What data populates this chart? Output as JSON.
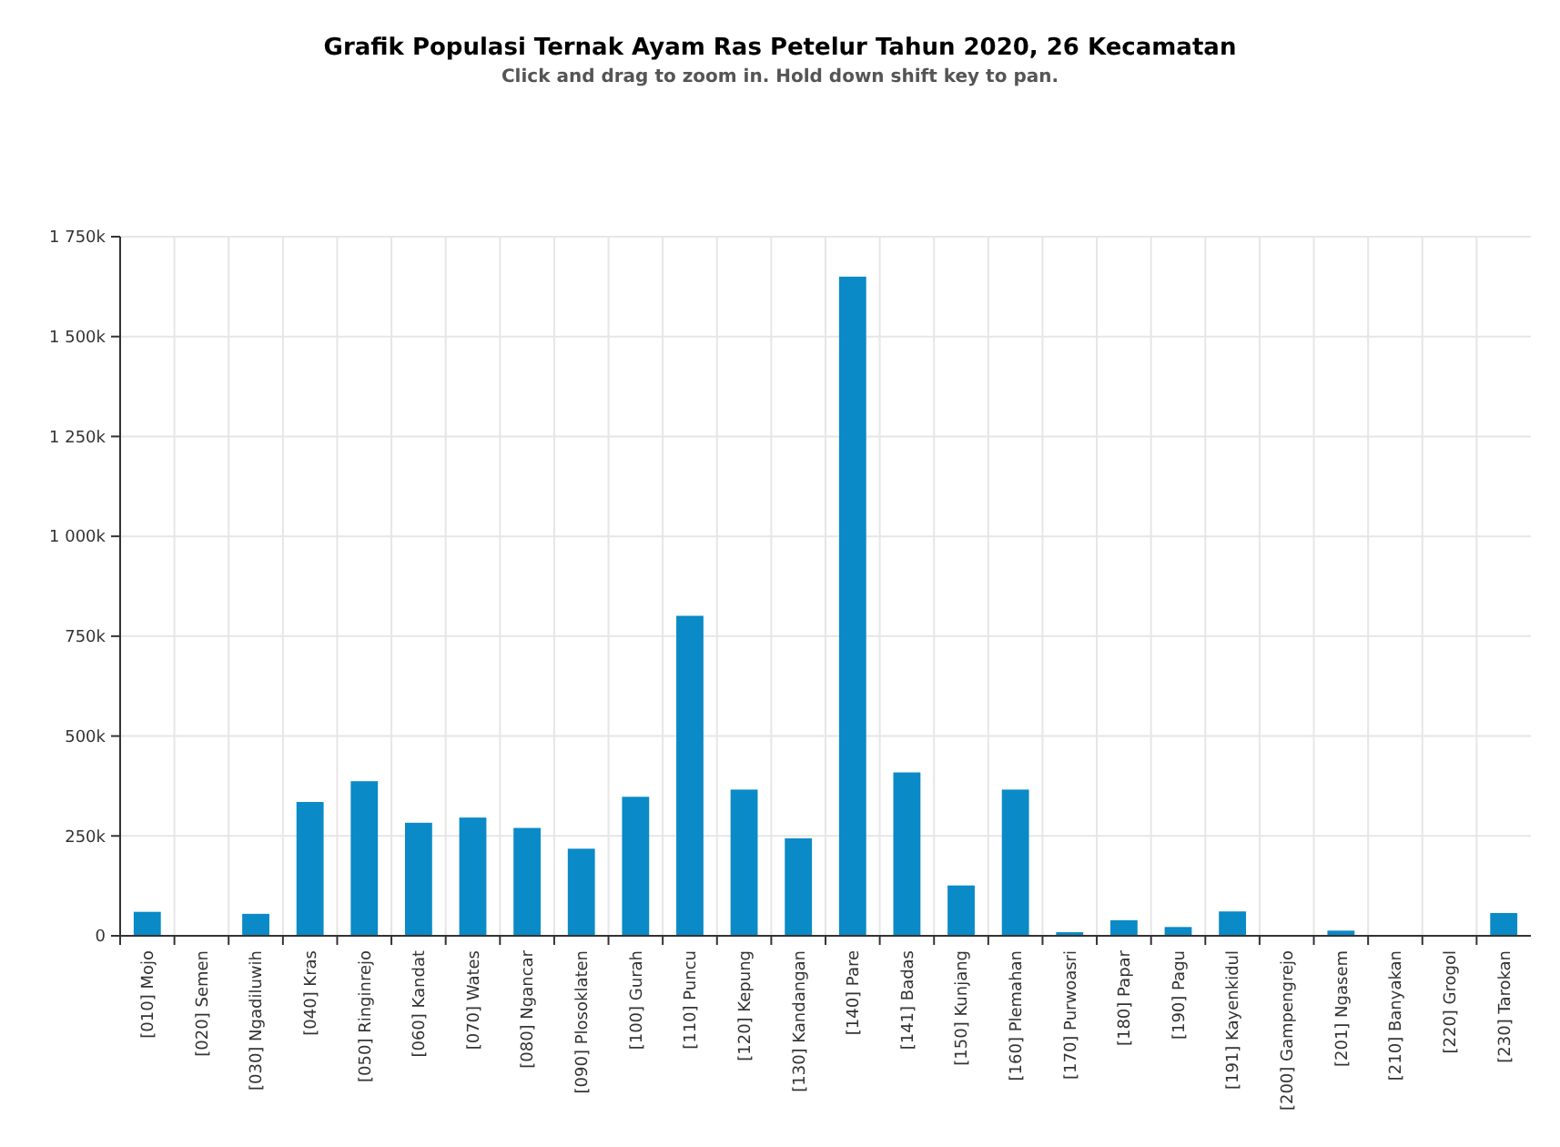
{
  "chart_data": {
    "type": "bar",
    "title": "Grafik Populasi Ternak Ayam Ras Petelur Tahun 2020, 26 Kecamatan",
    "subtitle": "Click and drag to zoom in. Hold down shift key to pan.",
    "categories": [
      "[010] Mojo",
      "[020] Semen",
      "[030] Ngadiluwih",
      "[040] Kras",
      "[050] Ringinrejo",
      "[060] Kandat",
      "[070] Wates",
      "[080] Ngancar",
      "[090] Plosoklaten",
      "[100] Gurah",
      "[110] Puncu",
      "[120] Kepung",
      "[130] Kandangan",
      "[140] Pare",
      "[141] Badas",
      "[150] Kunjang",
      "[160] Plemahan",
      "[170] Purwoasri",
      "[180] Papar",
      "[190] Pagu",
      "[191] Kayenkidul",
      "[200] Gampengrejo",
      "[201] Ngasem",
      "[210] Banyakan",
      "[220] Grogol",
      "[230] Tarokan"
    ],
    "values": [
      60000,
      0,
      55000,
      335000,
      387000,
      283000,
      296000,
      270000,
      218000,
      348000,
      801000,
      366000,
      244000,
      1650000,
      409000,
      126000,
      366000,
      9000,
      39000,
      22000,
      61000,
      0,
      13000,
      0,
      0,
      57000
    ],
    "color": "#0a8ac6",
    "ylim": [
      0,
      1750000
    ],
    "yticks": [
      {
        "value": 0,
        "label": "0"
      },
      {
        "value": 250000,
        "label": "250k"
      },
      {
        "value": 500000,
        "label": "500k"
      },
      {
        "value": 750000,
        "label": "750k"
      },
      {
        "value": 1000000,
        "label": "1 000k"
      },
      {
        "value": 1250000,
        "label": "1 250k"
      },
      {
        "value": 1500000,
        "label": "1 500k"
      },
      {
        "value": 1750000,
        "label": "1 750k"
      }
    ],
    "grid": true
  }
}
